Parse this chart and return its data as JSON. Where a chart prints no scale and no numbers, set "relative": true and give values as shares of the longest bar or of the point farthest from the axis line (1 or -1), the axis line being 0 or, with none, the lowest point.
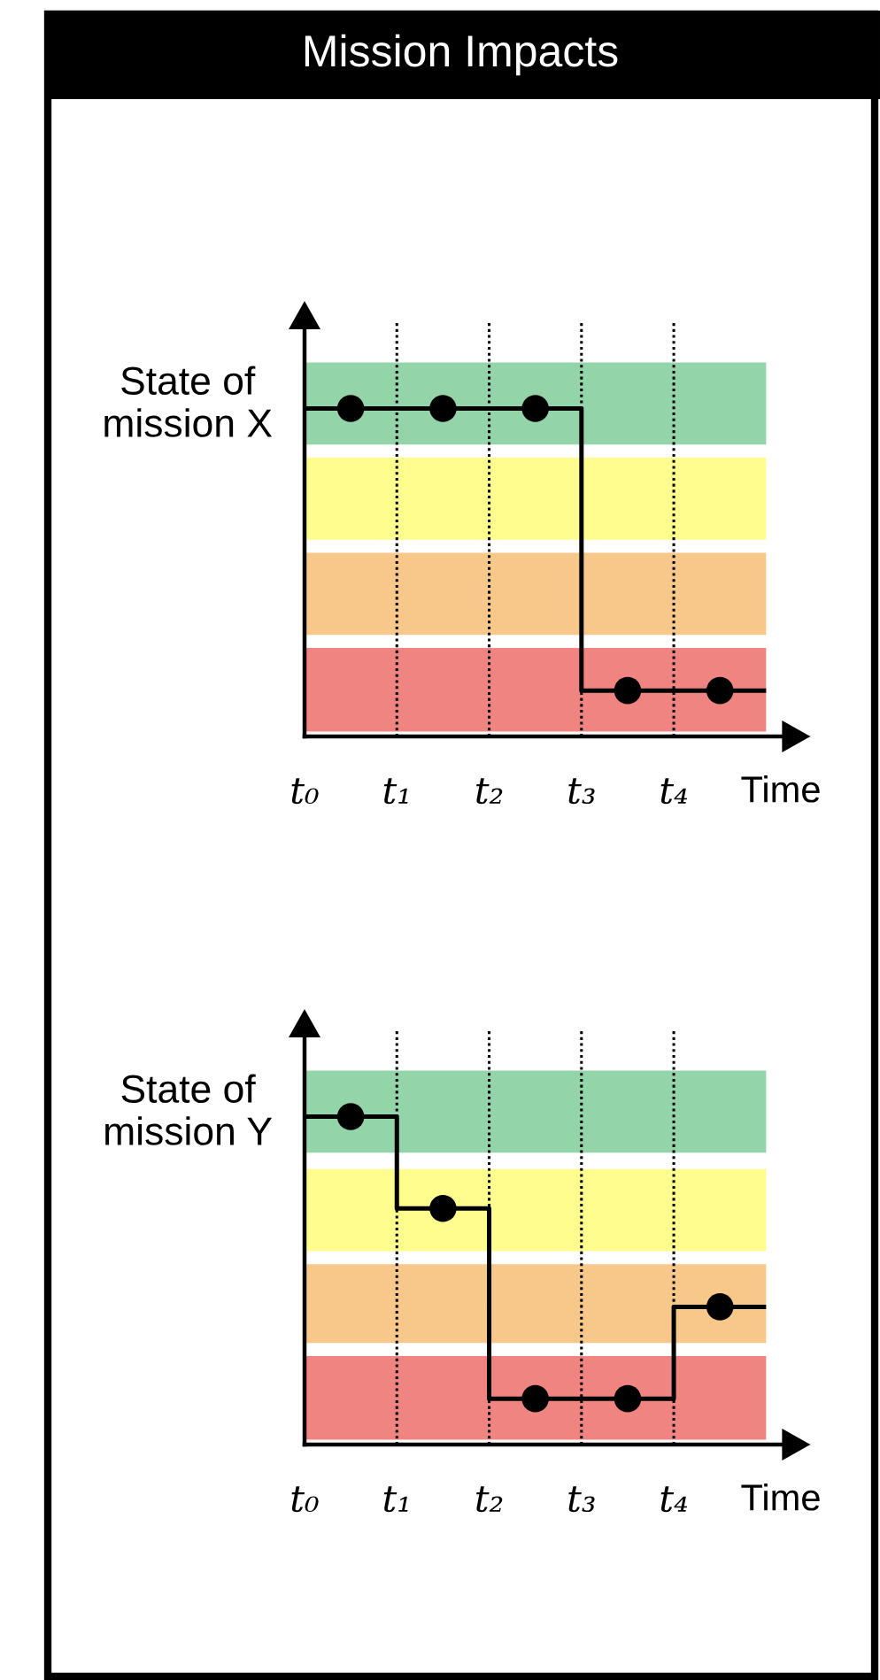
{
  "chart_data": [
    {
      "type": "step",
      "title": "Mission Impacts",
      "relative": true,
      "xlabel": "Time",
      "ylabel": "State of\nmission X",
      "categories": [
        null,
        null,
        null,
        null,
        null
      ],
      "values": [
        1,
        1,
        1,
        0.14,
        0.14
      ],
      "color": "#000000",
      "marker": "circle",
      "grid": "x",
      "annotations": [
        "t₀",
        "t₁",
        "t₂",
        "t₃",
        "t₄"
      ],
      "bands": [
        {
          "axis": "y",
          "from": 0.89,
          "to": 1.14,
          "color": "#93d5a9"
        },
        {
          "axis": "y",
          "from": 0.6,
          "to": 0.85,
          "color": "#fffd8d"
        },
        {
          "axis": "y",
          "from": 0.31,
          "to": 0.56,
          "color": "#f7c88a"
        },
        {
          "axis": "y",
          "from": 0.015,
          "to": 0.27,
          "color": "#ef8481"
        }
      ]
    },
    {
      "type": "step",
      "relative": true,
      "xlabel": "Time",
      "ylabel": "State of\nmission Y",
      "categories": [
        null,
        null,
        null,
        null,
        null
      ],
      "values": [
        1,
        0.72,
        0.14,
        0.14,
        0.42
      ],
      "color": "#000000",
      "marker": "circle",
      "grid": "x",
      "annotations": [
        "t₀",
        "t₁",
        "t₂",
        "t₃",
        "t₄"
      ],
      "bands": [
        {
          "axis": "y",
          "from": 0.89,
          "to": 1.14,
          "color": "#93d5a9"
        },
        {
          "axis": "y",
          "from": 0.59,
          "to": 0.84,
          "color": "#fffd8d"
        },
        {
          "axis": "y",
          "from": 0.31,
          "to": 0.55,
          "color": "#f7c88a"
        },
        {
          "axis": "y",
          "from": 0.015,
          "to": 0.27,
          "color": "#ef8481"
        }
      ]
    }
  ]
}
